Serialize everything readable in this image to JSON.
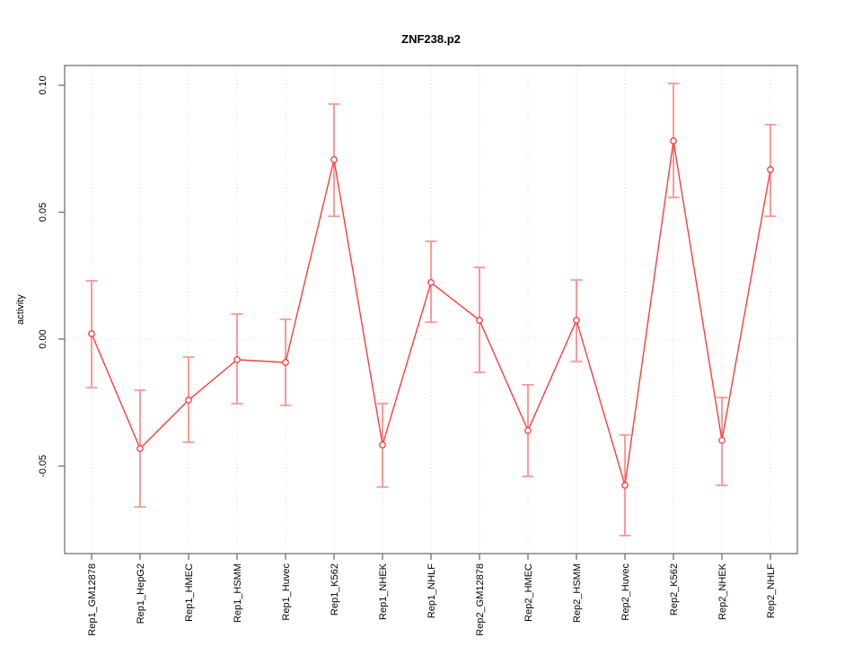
{
  "chart_data": {
    "type": "line",
    "subtype": "points-with-error-bars",
    "title": "ZNF238.p2",
    "xlabel": "",
    "ylabel": "activity",
    "categories": [
      "Rep1_GM12878",
      "Rep1_HepG2",
      "Rep1_HMEC",
      "Rep1_HSMM",
      "Rep1_Huvec",
      "Rep1_K562",
      "Rep1_NHEK",
      "Rep1_NHLF",
      "Rep2_GM12878",
      "Rep2_HMEC",
      "Rep2_HSMM",
      "Rep2_Huvec",
      "Rep2_K562",
      "Rep2_NHEK",
      "Rep2_NHLF"
    ],
    "series": [
      {
        "name": "activity",
        "values": [
          0.0021,
          -0.0431,
          -0.024,
          -0.0081,
          -0.0092,
          0.0707,
          -0.0417,
          0.0223,
          0.0074,
          -0.036,
          0.0074,
          -0.0576,
          0.0781,
          -0.0399,
          0.0668
        ],
        "upper": [
          0.023,
          -0.0201,
          -0.0071,
          0.0099,
          0.0078,
          0.0926,
          -0.0254,
          0.0385,
          0.0283,
          -0.018,
          0.0233,
          -0.0378,
          0.1007,
          -0.023,
          0.0845
        ],
        "lower": [
          -0.0191,
          -0.0661,
          -0.0406,
          -0.0254,
          -0.0261,
          0.0484,
          -0.0583,
          0.0067,
          -0.0131,
          -0.0541,
          -0.0088,
          -0.0774,
          0.0558,
          -0.0576,
          0.0484
        ]
      }
    ],
    "yticks": [
      -0.05,
      0.0,
      0.05,
      0.1
    ],
    "ytick_labels": [
      "-0.05",
      "0.00",
      "0.05",
      "0.10"
    ],
    "ylim": [
      -0.0845,
      0.1078
    ],
    "grid": "dotted vertical line at every category; dotted horizontal line at y=0",
    "legend": "none",
    "colors": {
      "line": "#ff3b3b",
      "point": "#ff3b3b",
      "point_fill": "#ffffff",
      "error_bar": "#ff9898",
      "grid": "#d9d9d9",
      "box": "#666666",
      "tick": "#666666",
      "text": "#000000"
    }
  }
}
